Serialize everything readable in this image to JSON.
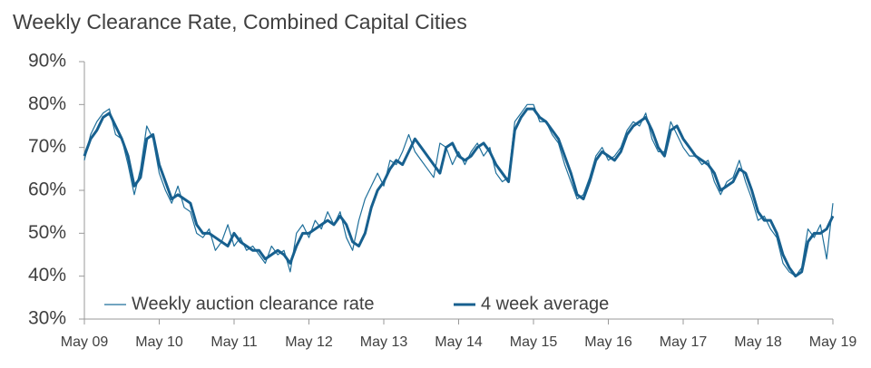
{
  "chart_data": {
    "type": "line",
    "title": "Weekly Clearance Rate, Combined Capital Cities",
    "categories": [
      "May 09",
      null,
      null,
      null,
      null,
      null,
      null,
      null,
      null,
      null,
      null,
      null,
      "May 10",
      null,
      null,
      null,
      null,
      null,
      null,
      null,
      null,
      null,
      null,
      null,
      "May 11",
      null,
      null,
      null,
      null,
      null,
      null,
      null,
      null,
      null,
      null,
      null,
      "May 12",
      null,
      null,
      null,
      null,
      null,
      null,
      null,
      null,
      null,
      null,
      null,
      "May 13",
      null,
      null,
      null,
      null,
      null,
      null,
      null,
      null,
      null,
      null,
      null,
      "May 14",
      null,
      null,
      null,
      null,
      null,
      null,
      null,
      null,
      null,
      null,
      null,
      "May 15",
      null,
      null,
      null,
      null,
      null,
      null,
      null,
      null,
      null,
      null,
      null,
      "May 16",
      null,
      null,
      null,
      null,
      null,
      null,
      null,
      null,
      null,
      null,
      null,
      "May 17",
      null,
      null,
      null,
      null,
      null,
      null,
      null,
      null,
      null,
      null,
      null,
      "May 18",
      null,
      null,
      null,
      null,
      null,
      null,
      null,
      null,
      null,
      null,
      null,
      "May 19"
    ],
    "series": [
      {
        "name": "Weekly auction clearance rate",
        "color": "#1f6f9a",
        "width": 1.2,
        "values": [
          67,
          73,
          76,
          78,
          79,
          73,
          72,
          66,
          59,
          65,
          75,
          72,
          64,
          60,
          57,
          61,
          56,
          55,
          50,
          49,
          51,
          46,
          48,
          52,
          47,
          49,
          46,
          47,
          45,
          43,
          47,
          45,
          46,
          41,
          50,
          52,
          49,
          53,
          51,
          55,
          52,
          55,
          49,
          46,
          53,
          58,
          61,
          64,
          61,
          67,
          66,
          69,
          73,
          69,
          67,
          65,
          63,
          71,
          70,
          66,
          69,
          66,
          69,
          71,
          68,
          70,
          64,
          62,
          63,
          76,
          78,
          80,
          80,
          76,
          76,
          73,
          71,
          66,
          62,
          58,
          59,
          63,
          68,
          70,
          67,
          68,
          70,
          74,
          76,
          75,
          78,
          72,
          69,
          69,
          76,
          73,
          70,
          68,
          68,
          66,
          67,
          62,
          59,
          62,
          63,
          67,
          62,
          58,
          53,
          54,
          51,
          49,
          43,
          41,
          40,
          42,
          51,
          49,
          52,
          44,
          57
        ]
      },
      {
        "name": "4 week average",
        "color": "#17608f",
        "width": 3,
        "values": [
          68,
          72,
          74,
          77,
          78,
          75,
          72,
          68,
          61,
          63,
          72,
          73,
          66,
          62,
          58,
          59,
          58,
          57,
          52,
          50,
          50,
          49,
          48,
          47,
          50,
          48,
          47,
          46,
          46,
          44,
          45,
          46,
          45,
          43,
          47,
          50,
          50,
          51,
          52,
          53,
          52,
          54,
          52,
          48,
          47,
          50,
          56,
          60,
          62,
          65,
          67,
          66,
          69,
          72,
          70,
          68,
          66,
          64,
          70,
          71,
          68,
          67,
          68,
          70,
          71,
          69,
          66,
          64,
          62,
          74,
          77,
          79,
          79,
          77,
          76,
          74,
          72,
          68,
          64,
          59,
          58,
          62,
          67,
          69,
          68,
          67,
          69,
          73,
          75,
          76,
          77,
          74,
          70,
          68,
          74,
          75,
          72,
          70,
          68,
          67,
          66,
          64,
          60,
          61,
          62,
          65,
          64,
          60,
          55,
          53,
          53,
          50,
          45,
          42,
          40,
          41,
          48,
          50,
          50,
          51,
          54
        ]
      }
    ],
    "ylim": [
      30,
      90
    ],
    "yticks": [
      {
        "value": 30,
        "label": "30%"
      },
      {
        "value": 40,
        "label": "40%"
      },
      {
        "value": 50,
        "label": "50%"
      },
      {
        "value": 60,
        "label": "60%"
      },
      {
        "value": 70,
        "label": "70%"
      },
      {
        "value": 80,
        "label": "80%"
      },
      {
        "value": 90,
        "label": "90%"
      }
    ],
    "legend": "bottom-left"
  }
}
